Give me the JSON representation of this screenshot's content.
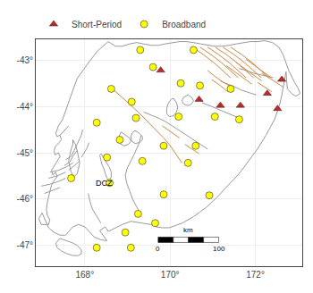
{
  "chart_data": {
    "type": "scatter",
    "xlim": [
      166.85,
      173.1
    ],
    "ylim": [
      -47.45,
      -42.55
    ],
    "xticks": [
      {
        "value": 168,
        "label": "168°"
      },
      {
        "value": 170,
        "label": "170°"
      },
      {
        "value": 172,
        "label": "172°"
      }
    ],
    "yticks": [
      {
        "value": -43,
        "label": "-43°"
      },
      {
        "value": -44,
        "label": "-44°"
      },
      {
        "value": -45,
        "label": "-45°"
      },
      {
        "value": -46,
        "label": "-46°"
      },
      {
        "value": -47,
        "label": "-47°"
      }
    ],
    "grid": true,
    "legend": "upper left",
    "series": [
      {
        "type": "line",
        "color": "#999999",
        "x": [
          168.55,
          168.3,
          168.05,
          167.82,
          167.72,
          167.62,
          167.55,
          167.48,
          167.38,
          167.32,
          167.35,
          167.42,
          167.45,
          167.4,
          167.32,
          167.28,
          167.3,
          167.38,
          167.42,
          167.35,
          167.28,
          167.22,
          167.25,
          167.32,
          167.35,
          167.28,
          167.22,
          167.18,
          167.15,
          167.12,
          167.1,
          167.12,
          167.18,
          167.15,
          166.98,
          166.92,
          167.0,
          167.15,
          167.28,
          167.42,
          167.55,
          167.72,
          167.85,
          168.0,
          168.12,
          168.22,
          168.38,
          168.52,
          168.35,
          168.48,
          168.55,
          168.72,
          168.88,
          169.08,
          169.25,
          169.4,
          169.55,
          169.68,
          169.82,
          169.98,
          170.12,
          170.28,
          170.42,
          170.55,
          170.7,
          170.85,
          171.0,
          171.15,
          171.28,
          171.42,
          171.55,
          171.68,
          171.8,
          171.92,
          172.05,
          172.15,
          172.25,
          172.35,
          172.45,
          172.52,
          172.58,
          172.62,
          172.65,
          172.68,
          172.72,
          172.75,
          172.85,
          172.95,
          173.05,
          173.0,
          172.92,
          172.78,
          172.72,
          172.65,
          172.55,
          172.4,
          172.22,
          172.05,
          171.88,
          171.72,
          171.55,
          171.38,
          171.22,
          171.05,
          170.88,
          170.72,
          170.55,
          170.38,
          170.22,
          170.05,
          169.88,
          169.72,
          169.55,
          169.38,
          169.22,
          169.05,
          168.88,
          168.72,
          168.55
        ],
        "y": [
          -42.6,
          -42.8,
          -43.1,
          -43.4,
          -43.65,
          -43.9,
          -44.1,
          -44.28,
          -44.42,
          -44.58,
          -44.65,
          -44.62,
          -44.72,
          -44.78,
          -44.85,
          -44.95,
          -45.05,
          -45.0,
          -45.08,
          -45.18,
          -45.28,
          -45.38,
          -45.48,
          -45.42,
          -45.52,
          -45.6,
          -45.7,
          -45.82,
          -45.95,
          -46.08,
          -46.22,
          -46.35,
          -46.45,
          -46.55,
          -46.55,
          -46.42,
          -46.3,
          -46.62,
          -46.72,
          -46.78,
          -46.78,
          -46.6,
          -46.55,
          -46.6,
          -46.72,
          -46.82,
          -46.88,
          -46.9,
          -46.68,
          -46.6,
          -46.7,
          -46.62,
          -46.55,
          -46.48,
          -46.5,
          -46.52,
          -46.55,
          -46.6,
          -46.62,
          -46.62,
          -46.58,
          -46.52,
          -46.45,
          -46.38,
          -46.28,
          -46.18,
          -46.05,
          -45.92,
          -45.78,
          -45.65,
          -45.52,
          -45.38,
          -45.22,
          -45.08,
          -44.92,
          -44.78,
          -44.62,
          -44.45,
          -44.28,
          -44.1,
          -43.92,
          -43.75,
          -43.58,
          -43.42,
          -43.25,
          -43.62,
          -43.72,
          -43.78,
          -43.72,
          -43.6,
          -43.48,
          -43.22,
          -43.08,
          -42.88,
          -42.72,
          -42.62,
          -42.58,
          -42.6,
          -42.6,
          -42.62,
          -42.65,
          -42.68,
          -42.7,
          -42.7,
          -42.68,
          -42.65,
          -42.62,
          -42.6,
          -42.6,
          -42.62,
          -42.65,
          -42.68,
          -42.68,
          -42.65,
          -42.62,
          -42.65,
          -42.7,
          -42.7,
          -42.6
        ]
      },
      {
        "type": "line",
        "color": "#999999",
        "x": [
          167.18,
          167.38,
          167.58,
          167.72,
          null,
          167.15,
          167.35,
          167.55,
          null,
          166.98,
          167.18,
          167.38,
          167.55,
          null,
          167.05,
          167.22,
          167.42,
          null,
          167.52,
          167.65,
          167.72,
          167.82,
          null,
          167.62,
          167.75,
          167.88,
          null,
          167.55,
          167.68,
          167.75,
          167.82,
          167.88,
          167.92,
          167.95,
          null,
          167.92,
          167.98,
          168.05,
          168.1,
          null,
          167.42,
          167.52,
          167.62
        ],
        "y": [
          -45.42,
          -45.38,
          -45.3,
          -45.22,
          null,
          -45.55,
          -45.5,
          -45.42,
          null,
          -45.72,
          -45.68,
          -45.62,
          -45.55,
          null,
          -45.88,
          -45.82,
          -45.75,
          null,
          -45.28,
          -45.2,
          -45.08,
          -44.95,
          null,
          -45.38,
          -45.28,
          -45.18,
          null,
          -45.15,
          -45.08,
          -44.95,
          -44.82,
          -44.72,
          -44.62,
          -44.5,
          null,
          -45.1,
          -45.0,
          -44.9,
          -44.78,
          null,
          -44.62,
          -44.52,
          -44.42
        ]
      },
      {
        "type": "line",
        "color": "#999999",
        "x": [
          169.32,
          169.22,
          169.12,
          169.05,
          168.98,
          168.95,
          169.0,
          169.08,
          169.15,
          null,
          169.15,
          169.22,
          169.28,
          169.32,
          null,
          170.88,
          170.72,
          170.55,
          170.38,
          170.22,
          170.05,
          169.88,
          169.72,
          169.55,
          169.38,
          null,
          171.62,
          171.45,
          171.28,
          171.1,
          170.92,
          170.75,
          null,
          172.02,
          171.85,
          171.68,
          171.52,
          171.35,
          171.18,
          null,
          172.42,
          172.28,
          172.12,
          171.95,
          171.78,
          171.62,
          null,
          168.38,
          168.28,
          168.18,
          168.12,
          168.08
        ],
        "y": [
          -46.35,
          -46.18,
          -46.0,
          -45.82,
          -45.65,
          -45.48,
          -45.32,
          -45.18,
          -45.05,
          null,
          -45.05,
          -44.92,
          -44.78,
          -44.62,
          null,
          -44.92,
          -44.82,
          -44.72,
          -44.62,
          -44.52,
          -44.42,
          -44.32,
          -44.25,
          -44.18,
          -44.12,
          null,
          -44.25,
          -44.18,
          -44.12,
          -44.05,
          -43.98,
          -43.92,
          null,
          -43.75,
          -43.7,
          -43.65,
          -43.58,
          -43.52,
          -43.45,
          null,
          -43.38,
          -43.35,
          -43.32,
          -43.28,
          -43.22,
          -43.18,
          null,
          -46.52,
          -46.38,
          -46.22,
          -46.05,
          -45.88
        ]
      },
      {
        "type": "line",
        "color": "#999999",
        "x": [
          167.72,
          167.78,
          167.82,
          167.85,
          167.88,
          167.85,
          167.82,
          167.75,
          167.68,
          167.65,
          167.62,
          167.65,
          167.68,
          167.72,
          167.72,
          null,
          168.38,
          168.45,
          168.52,
          168.58,
          168.62,
          168.62,
          168.58,
          168.52,
          168.48,
          168.45,
          168.4,
          168.38,
          168.35,
          168.38,
          null,
          168.85,
          168.95,
          169.05,
          169.08,
          169.02,
          168.92,
          168.82,
          168.78,
          168.82,
          168.85,
          null,
          169.18,
          169.28,
          169.35,
          169.35,
          169.28,
          169.18,
          169.1,
          169.08,
          169.12,
          169.18,
          null,
          170.08,
          170.15,
          170.18,
          170.15,
          170.08,
          169.98,
          169.92,
          169.92,
          169.95,
          170.02,
          170.08,
          null,
          170.42,
          170.52,
          170.55,
          170.5,
          170.42,
          170.32,
          170.28,
          170.32,
          170.42
        ],
        "y": [
          -44.72,
          -44.82,
          -44.95,
          -45.08,
          -45.22,
          -45.35,
          -45.45,
          -45.52,
          -45.42,
          -45.3,
          -45.18,
          -45.05,
          -44.92,
          -44.82,
          -44.72,
          null,
          -45.02,
          -45.12,
          -45.22,
          -45.32,
          -45.42,
          -45.52,
          -45.6,
          -45.55,
          -45.45,
          -45.35,
          -45.25,
          -45.15,
          -45.05,
          -45.02,
          null,
          -44.55,
          -44.62,
          -44.68,
          -44.75,
          -44.82,
          -44.85,
          -44.8,
          -44.7,
          -44.62,
          -44.55,
          null,
          -44.52,
          -44.58,
          -44.65,
          -44.72,
          -44.78,
          -44.8,
          -44.75,
          -44.65,
          -44.56,
          -44.52,
          null,
          -43.82,
          -43.92,
          -44.02,
          -44.12,
          -44.2,
          -44.22,
          -44.15,
          -44.05,
          -43.95,
          -43.85,
          -43.82,
          null,
          -43.75,
          -43.82,
          -43.88,
          -43.95,
          -43.98,
          -43.95,
          -43.88,
          -43.8,
          -43.75
        ]
      },
      {
        "type": "line",
        "color": "#999999",
        "x": [
          167.42,
          167.52,
          167.62,
          167.72,
          167.82,
          167.88,
          167.92,
          167.92,
          167.85,
          167.72,
          167.58,
          167.45,
          167.35,
          167.32,
          167.38,
          167.42
        ],
        "y": [
          -46.85,
          -46.88,
          -46.92,
          -46.95,
          -47.0,
          -47.05,
          -47.1,
          -47.18,
          -47.22,
          -47.22,
          -47.18,
          -47.12,
          -47.05,
          -46.95,
          -46.88,
          -46.85
        ]
      },
      {
        "type": "line",
        "color": "#cc8844",
        "x": [
          168.65,
          168.85,
          169.05,
          169.25,
          169.42,
          169.58,
          169.72,
          169.85,
          169.98,
          170.08,
          170.18,
          170.28,
          null,
          170.52,
          170.78,
          171.02,
          171.22,
          171.42,
          null,
          170.7,
          170.96,
          171.2,
          171.4,
          171.6,
          null,
          170.88,
          171.14,
          171.38,
          171.58,
          171.78,
          null,
          171.06,
          171.32,
          171.56,
          171.76,
          171.96,
          null,
          171.24,
          171.5,
          171.74,
          171.94,
          172.14,
          null,
          171.42,
          171.68,
          171.92,
          172.12,
          172.32,
          null,
          170.88,
          171.05,
          171.25,
          171.45,
          null,
          170.98,
          171.18,
          171.35,
          null,
          171.32,
          171.52,
          171.72,
          171.92,
          null,
          171.55,
          171.75,
          171.95,
          172.15,
          null,
          171.78,
          171.98,
          172.18,
          172.38,
          null,
          170.35,
          170.52,
          170.68,
          null,
          169.82,
          170.02,
          170.22,
          null,
          172.05,
          172.22,
          172.38,
          null,
          172.15,
          172.32,
          172.48,
          172.65
        ],
        "y": [
          -43.62,
          -43.78,
          -43.95,
          -44.12,
          -44.28,
          -44.42,
          -44.55,
          -44.68,
          -44.82,
          -44.95,
          -45.08,
          -45.22,
          null,
          -42.72,
          -42.88,
          -43.05,
          -43.22,
          -43.38,
          null,
          -42.72,
          -42.88,
          -43.05,
          -43.22,
          -43.38,
          null,
          -42.72,
          -42.88,
          -43.05,
          -43.22,
          -43.38,
          null,
          -42.72,
          -42.88,
          -43.05,
          -43.22,
          -43.38,
          null,
          -42.72,
          -42.88,
          -43.05,
          -43.22,
          -43.38,
          null,
          -42.72,
          -42.88,
          -43.05,
          -43.22,
          -43.38,
          null,
          -43.22,
          -43.35,
          -43.48,
          -43.58,
          null,
          -43.42,
          -43.55,
          -43.68,
          null,
          -43.12,
          -43.25,
          -43.38,
          -43.52,
          null,
          -43.05,
          -43.18,
          -43.32,
          -43.45,
          null,
          -42.98,
          -43.12,
          -43.25,
          -43.38,
          null,
          -44.82,
          -44.92,
          -45.02,
          null,
          -44.42,
          -44.55,
          -44.68,
          null,
          -43.48,
          -43.58,
          -43.68,
          null,
          -43.28,
          -43.38,
          -43.48,
          -43.58
        ]
      },
      {
        "type": "scatter",
        "name": "Broadband",
        "color": "yellow",
        "marker": "circle",
        "x": [
          169.3,
          170.55,
          169.6,
          170.25,
          168.62,
          169.1,
          170.7,
          171.42,
          168.28,
          169.2,
          170.2,
          171.05,
          171.62,
          168.82,
          169.85,
          170.6,
          168.52,
          169.35,
          170.42,
          167.68,
          168.58,
          169.85,
          170.92,
          169.25,
          169.65,
          168.95,
          168.28,
          169.08
        ],
        "y": [
          -42.78,
          -42.78,
          -43.15,
          -43.5,
          -43.62,
          -43.9,
          -43.55,
          -43.62,
          -44.35,
          -44.25,
          -44.22,
          -44.22,
          -44.28,
          -44.72,
          -44.85,
          -44.85,
          -45.1,
          -45.18,
          -45.22,
          -45.55,
          -45.65,
          -45.9,
          -45.92,
          -46.32,
          -46.52,
          -46.72,
          -47.05,
          -47.05
        ]
      },
      {
        "type": "scatter",
        "name": "Short-Period",
        "color": "#cc2222",
        "marker": "triangle",
        "x": [
          169.78,
          170.68,
          171.18,
          171.65,
          172.28,
          172.52,
          172.62
        ],
        "y": [
          -43.22,
          -43.85,
          -43.98,
          -43.98,
          -43.72,
          -44.05,
          -43.42
        ]
      }
    ],
    "annotations": [
      {
        "text": "DCZ",
        "x": 168.22,
        "y": -45.65
      }
    ],
    "scale_bar": {
      "x": [
        169.72,
        171.14
      ],
      "y": -46.88,
      "segments": 4,
      "labels": [
        "0",
        "100"
      ],
      "unit": "km"
    }
  }
}
